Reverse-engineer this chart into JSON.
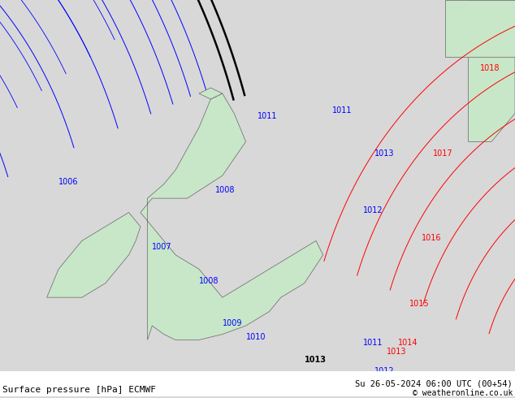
{
  "title_left": "Surface pressure [hPa] ECMWF",
  "title_right": "Su 26-05-2024 06:00 UTC (00+54)",
  "copyright": "© weatheronline.co.uk",
  "background_color": "#d8d8d8",
  "land_color": "#c8e6c8",
  "text_color": "#000000",
  "blue_color": "#0000ff",
  "red_color": "#ff0000",
  "black_color": "#000000",
  "contour_interval": 1,
  "pressure_levels_blue": [
    1006,
    1007,
    1008,
    1009,
    1010,
    1011,
    1012
  ],
  "pressure_levels_red": [
    1013,
    1014,
    1015,
    1016,
    1017,
    1018
  ],
  "pressure_levels_black": [
    1013
  ],
  "font_size_labels": 8,
  "font_size_title": 9
}
